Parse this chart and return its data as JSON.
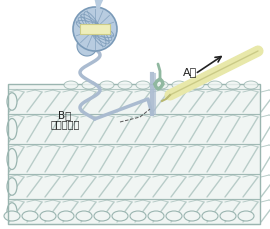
{
  "bg_color": "#ffffff",
  "fabric_bg": "#f0f5f3",
  "fabric_stitch_color": "#b8ccc8",
  "fabric_outline": "#9ab5b0",
  "fabric_white": "#ffffff",
  "yarn_ball_main": "#b8cce0",
  "yarn_ball_outline": "#7a9ab8",
  "yarn_ball_band": "#eeeebb",
  "yarn_ball_band_outline": "#cccc88",
  "thread_B_color": "#aabbd0",
  "thread_A_color": "#90b8a0",
  "hook_color": "#e8e8aa",
  "hook_outline": "#b8b870",
  "arrow_color": "#222222",
  "dashed_color": "#555555",
  "label_A": "A糸",
  "label_B1": "B糸",
  "label_B2": "（足す糸）"
}
